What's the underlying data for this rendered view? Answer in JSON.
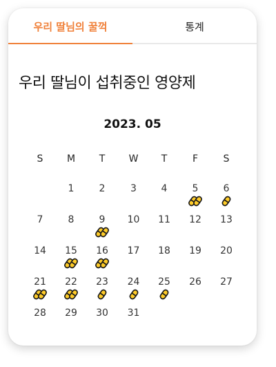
{
  "tabs": [
    {
      "label": "우리 딸님의 꿀꺽",
      "active": true
    },
    {
      "label": "통계",
      "active": false
    }
  ],
  "heading": "우리 딸님이 섭취중인 영양제",
  "calendar": {
    "month_label": "2023. 05",
    "weekdays": [
      "S",
      "M",
      "T",
      "W",
      "T",
      "F",
      "S"
    ],
    "first_weekday": 1,
    "days_in_month": 31,
    "intake": {
      "5": 2,
      "6": 1,
      "9": 2,
      "15": 2,
      "16": 2,
      "21": 2,
      "22": 2,
      "23": 1,
      "24": 1,
      "25": 1
    }
  },
  "colors": {
    "accent": "#f0813a",
    "pill_fill": "#ffcc29",
    "pill_outline": "#1a1a1a"
  },
  "icons": {
    "intake_marker": "pill-capsule-icon"
  }
}
